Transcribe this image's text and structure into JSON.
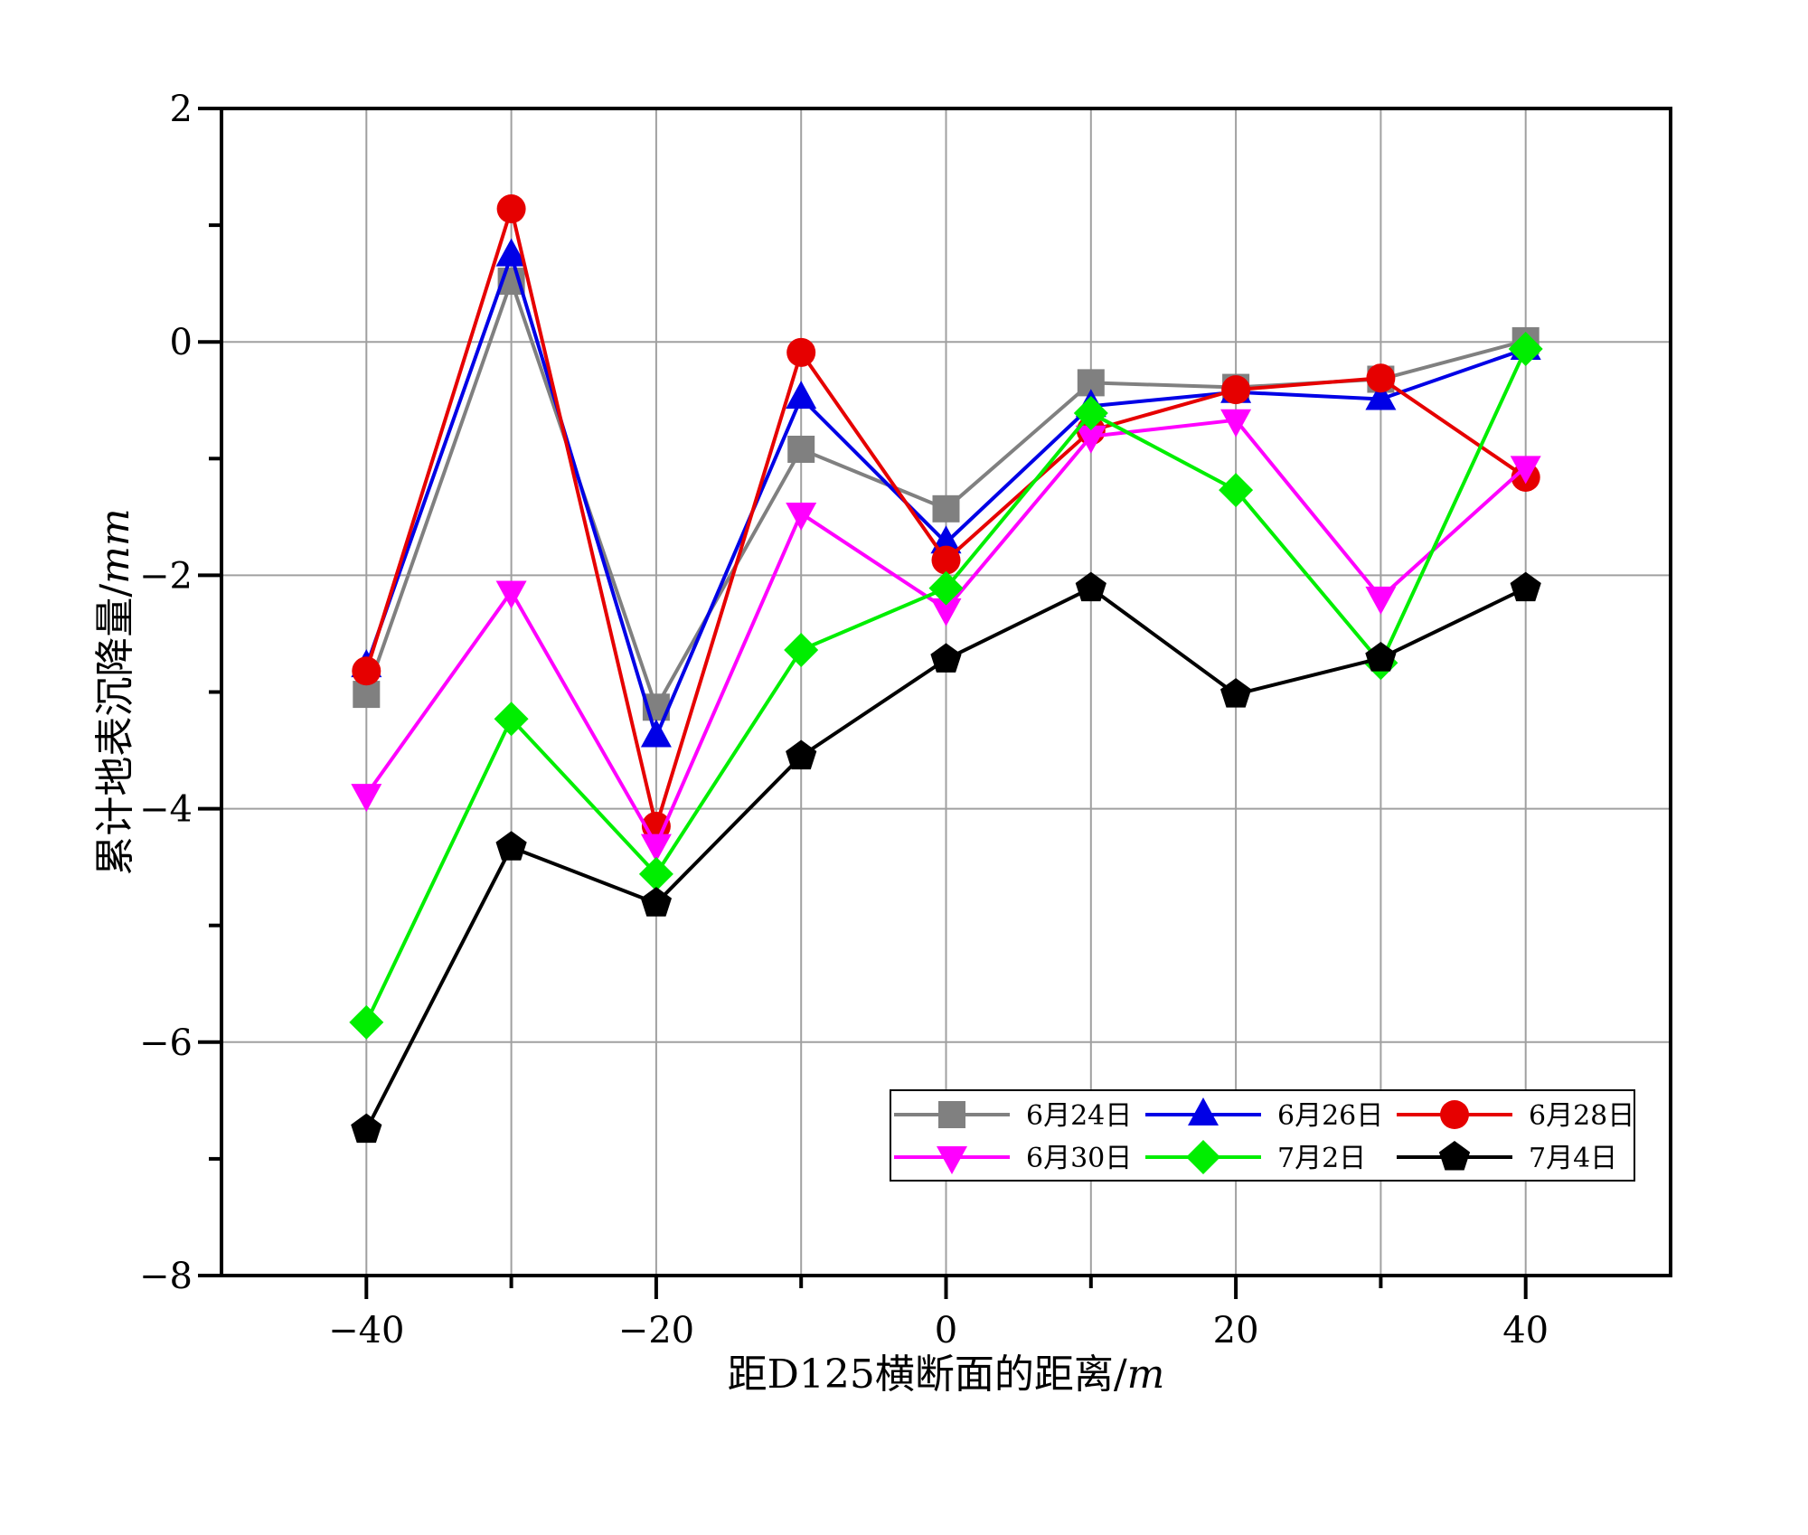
{
  "chart_data": {
    "type": "line",
    "xlabel": "距D125横断面的距离/",
    "xlabel_unit": "m",
    "ylabel": "累计地表沉降量/",
    "ylabel_unit": "mm",
    "xlim": [
      -50,
      50
    ],
    "ylim": [
      -8,
      2
    ],
    "xticks": [
      -40,
      -20,
      0,
      20,
      40
    ],
    "yticks": [
      -8,
      -6,
      -4,
      -2,
      0,
      2
    ],
    "xtick_labels": [
      "−40",
      "−20",
      "0",
      "20",
      "40"
    ],
    "ytick_labels": [
      "−8",
      "−6",
      "−4",
      "−2",
      "0",
      "2"
    ],
    "grid": true,
    "legend_position": "lower-right",
    "x": [
      -40,
      -30,
      -20,
      -10,
      0,
      10,
      20,
      30,
      40
    ],
    "series": [
      {
        "name": "6月24日",
        "color": "#808080",
        "marker": "square",
        "values": [
          -3.02,
          0.52,
          -3.13,
          -0.92,
          -1.43,
          -0.35,
          -0.39,
          -0.32,
          0.01
        ]
      },
      {
        "name": "6月26日",
        "color": "#0000e6",
        "marker": "triangle-up",
        "values": [
          -2.78,
          0.74,
          -3.38,
          -0.48,
          -1.72,
          -0.55,
          -0.43,
          -0.49,
          -0.06
        ]
      },
      {
        "name": "6月28日",
        "color": "#e60000",
        "marker": "circle",
        "values": [
          -2.82,
          1.14,
          -4.15,
          -0.09,
          -1.87,
          -0.76,
          -0.41,
          -0.31,
          -1.16
        ]
      },
      {
        "name": "6月30日",
        "color": "#ff00ff",
        "marker": "triangle-down",
        "values": [
          -3.88,
          -2.14,
          -4.31,
          -1.47,
          -2.29,
          -0.81,
          -0.67,
          -2.19,
          -1.07
        ]
      },
      {
        "name": "7月2日",
        "color": "#00ee00",
        "marker": "diamond",
        "values": [
          -5.83,
          -3.23,
          -4.56,
          -2.64,
          -2.11,
          -0.61,
          -1.27,
          -2.75,
          -0.06
        ]
      },
      {
        "name": "7月4日",
        "color": "#000000",
        "marker": "pentagon",
        "values": [
          -6.75,
          -4.33,
          -4.81,
          -3.55,
          -2.72,
          -2.11,
          -3.02,
          -2.71,
          -2.11
        ]
      }
    ]
  }
}
